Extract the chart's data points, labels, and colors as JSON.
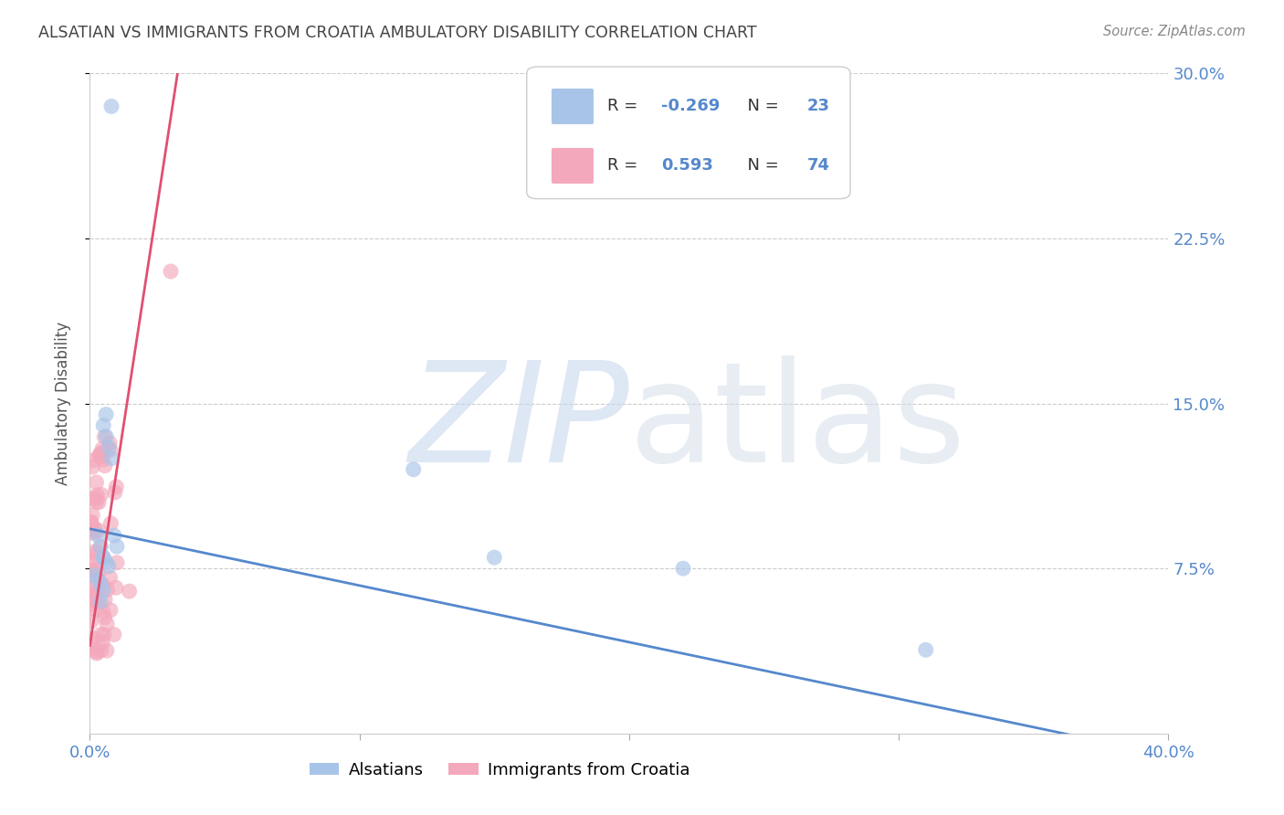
{
  "title": "ALSATIAN VS IMMIGRANTS FROM CROATIA AMBULATORY DISABILITY CORRELATION CHART",
  "source": "Source: ZipAtlas.com",
  "ylabel": "Ambulatory Disability",
  "watermark_zip": "ZIP",
  "watermark_atlas": "atlas",
  "legend_label_1": "Alsatians",
  "legend_label_2": "Immigrants from Croatia",
  "R1": -0.269,
  "N1": 23,
  "R2": 0.593,
  "N2": 74,
  "color1": "#a8c4e8",
  "color2": "#f4a8bc",
  "line_color1": "#5588cc",
  "line_color2": "#e05070",
  "xlim": [
    0.0,
    0.4
  ],
  "ylim": [
    0.0,
    0.3
  ],
  "background_color": "#ffffff",
  "grid_color": "#cccccc",
  "title_color": "#444444",
  "axis_color": "#5588cc",
  "tick_color": "#5588cc"
}
